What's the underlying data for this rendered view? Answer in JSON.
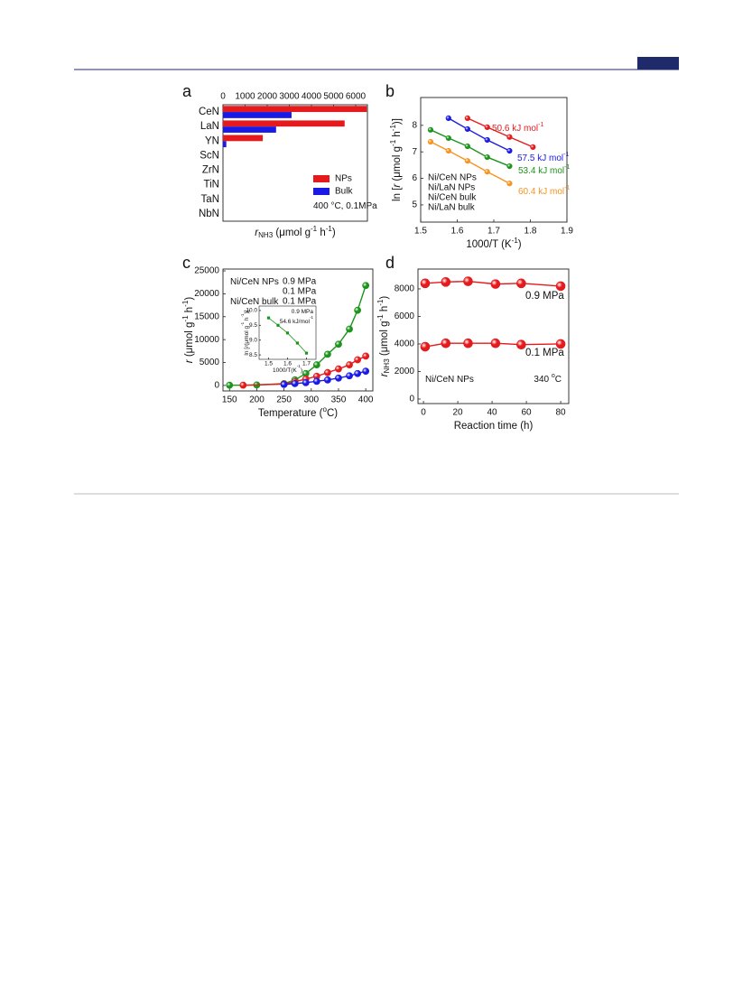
{
  "chart_data": [
    {
      "panel": "a",
      "type": "bar",
      "orientation": "horizontal",
      "xaxis": "top",
      "categories": [
        "CeN",
        "LaN",
        "YN",
        "ScN",
        "ZrN",
        "TiN",
        "TaN",
        "NbN"
      ],
      "series": [
        {
          "name": "NPs",
          "color": "#e41a1c",
          "values": [
            6500,
            5500,
            1800,
            0,
            0,
            0,
            0,
            0
          ]
        },
        {
          "name": "Bulk",
          "color": "#1a1ae6",
          "values": [
            3100,
            2400,
            150,
            0,
            0,
            0,
            0,
            0
          ]
        }
      ],
      "xlim": [
        0,
        6530
      ],
      "xticks": [
        0,
        1000,
        2000,
        3000,
        4000,
        5000,
        6000
      ],
      "xlabel": [
        {
          "text": "r",
          "style": "italic"
        },
        {
          "text": "NH3",
          "style": "sub"
        },
        {
          "text": " (μmol g"
        },
        {
          "text": "-1",
          "style": "sup"
        },
        {
          "text": " h"
        },
        {
          "text": "-1",
          "style": "sup"
        },
        {
          "text": ")"
        }
      ],
      "annotations": [
        [
          {
            "text": "400 °C, 0.1MPa"
          }
        ]
      ],
      "legend": "center-right"
    },
    {
      "panel": "b",
      "type": "line",
      "series": [
        {
          "name": "Ni/CeN NPs",
          "color": "#e41a1c",
          "x": [
            1.628,
            1.682,
            1.743,
            1.807
          ],
          "values": [
            8.27,
            7.93,
            7.56,
            7.18
          ]
        },
        {
          "name": "Ni/LaN NPs",
          "color": "#1a1ae6",
          "x": [
            1.576,
            1.628,
            1.682,
            1.743
          ],
          "values": [
            8.27,
            7.86,
            7.45,
            7.04
          ]
        },
        {
          "name": "Ni/CeN bulk",
          "color": "#1a941a",
          "x": [
            1.527,
            1.576,
            1.628,
            1.682,
            1.743
          ],
          "values": [
            7.83,
            7.52,
            7.21,
            6.8,
            6.46
          ]
        },
        {
          "name": "Ni/LaN bulk",
          "color": "#f7931e",
          "x": [
            1.527,
            1.576,
            1.628,
            1.682,
            1.743
          ],
          "values": [
            7.38,
            7.04,
            6.66,
            6.25,
            5.81
          ]
        }
      ],
      "xlim": [
        1.5,
        1.9
      ],
      "xticks": [
        1.5,
        1.6,
        1.7,
        1.8,
        1.9
      ],
      "ylim": [
        4.35,
        9.05
      ],
      "yticks": [
        5,
        6,
        7,
        8
      ],
      "xlabel": [
        {
          "text": "1000/T (K"
        },
        {
          "text": "-1",
          "style": "sup"
        },
        {
          "text": ")"
        }
      ],
      "ylabel": [
        {
          "text": "ln ["
        },
        {
          "text": "r",
          "style": "italic"
        },
        {
          "text": " (μmol g"
        },
        {
          "text": "-1",
          "style": "sup"
        },
        {
          "text": " h"
        },
        {
          "text": "-1",
          "style": "sup"
        },
        {
          "text": ")]"
        }
      ],
      "annotations": [
        [
          {
            "text": "50.6 kJ mol",
            "color": "#e41a1c"
          },
          {
            "text": "-1",
            "style": "sup",
            "color": "#e41a1c"
          }
        ],
        [
          {
            "text": "57.5 kJ mol",
            "color": "#1a1ae6"
          },
          {
            "text": "-1",
            "style": "sup",
            "color": "#1a1ae6"
          }
        ],
        [
          {
            "text": "53.4 kJ mol",
            "color": "#1a941a"
          },
          {
            "text": "-1",
            "style": "sup",
            "color": "#1a941a"
          }
        ],
        [
          {
            "text": "60.4 kJ mol",
            "color": "#f7931e"
          },
          {
            "text": "-1",
            "style": "sup",
            "color": "#f7931e"
          }
        ]
      ],
      "legend": "center-left"
    },
    {
      "panel": "c",
      "type": "line",
      "series": [
        {
          "name": "0.9 MPa",
          "color": "#1a941a",
          "x": [
            150,
            200,
            250,
            270,
            290,
            310,
            330,
            350,
            370,
            385,
            400
          ],
          "values": [
            50,
            100,
            400,
            1200,
            2600,
            4500,
            6800,
            9000,
            12300,
            16400,
            21800
          ]
        },
        {
          "name": "0.1 MPa",
          "color": "#e41a1c",
          "x": [
            175,
            250,
            270,
            290,
            310,
            330,
            350,
            370,
            385,
            400
          ],
          "values": [
            50,
            300,
            800,
            1400,
            2000,
            2800,
            3600,
            4500,
            5600,
            6400
          ]
        },
        {
          "name": "0.1 MPa",
          "color": "#1a1ae6",
          "x": [
            250,
            270,
            290,
            310,
            330,
            350,
            370,
            385,
            400
          ],
          "values": [
            200,
            400,
            600,
            900,
            1200,
            1600,
            2100,
            2600,
            3100
          ]
        }
      ],
      "xlim": [
        138,
        413
      ],
      "xticks": [
        150,
        200,
        250,
        300,
        350,
        400
      ],
      "ylim": [
        -1200,
        25400
      ],
      "yticks": [
        0,
        5000,
        10000,
        15000,
        20000,
        25000
      ],
      "xlabel": [
        {
          "text": "Temperature ("
        },
        {
          "text": "o",
          "style": "sup"
        },
        {
          "text": "C)"
        }
      ],
      "ylabel": [
        {
          "text": "r",
          "style": "italic"
        },
        {
          "text": " (μmol g"
        },
        {
          "text": "-1",
          "style": "sup"
        },
        {
          "text": " h"
        },
        {
          "text": "-1",
          "style": "sup"
        },
        {
          "text": ")"
        }
      ],
      "annotations": [
        [
          {
            "text": "Ni/CeN NPs"
          }
        ],
        [
          {
            "text": "Ni/CeN bulk"
          }
        ]
      ],
      "legend": "upper-left"
    },
    {
      "type": "line",
      "inset": true,
      "series": [
        {
          "color": "#1a941a",
          "x": [
            1.5,
            1.55,
            1.6,
            1.652,
            1.7
          ],
          "values": [
            9.75,
            9.5,
            9.24,
            8.9,
            8.56
          ]
        }
      ],
      "xlim": [
        1.45,
        1.75
      ],
      "xticks": [
        1.5,
        1.6,
        1.7
      ],
      "ylim": [
        8.35,
        10.15
      ],
      "yticks": [
        8.5,
        {
          "value": 9,
          "label": "9.0"
        },
        9.5,
        {
          "value": 10,
          "label": "10.0"
        }
      ],
      "xlabel": [
        {
          "text": "1000/T(K"
        },
        {
          "text": "-1",
          "style": "sup"
        },
        {
          "text": ")"
        }
      ],
      "ylabel": [
        {
          "text": "ln ["
        },
        {
          "text": "r",
          "style": "italic"
        },
        {
          "text": "(μmol g"
        },
        {
          "text": "-1",
          "style": "sup"
        },
        {
          "text": " h"
        },
        {
          "text": "-1",
          "style": "sup"
        },
        {
          "text": ")]"
        }
      ],
      "annotations": [
        [
          {
            "text": "0.9 MPa"
          }
        ],
        [
          {
            "text": "54.6 kJ/mol"
          },
          {
            "text": "-1",
            "style": "sup"
          }
        ]
      ]
    },
    {
      "panel": "d",
      "type": "line",
      "series": [
        {
          "name": "0.9 MPa",
          "color": "#e41a1c",
          "x": [
            1,
            13,
            26,
            42,
            57,
            80
          ],
          "values": [
            8400,
            8500,
            8550,
            8350,
            8400,
            8200
          ]
        },
        {
          "name": "0.1 MPa",
          "color": "#e41a1c",
          "x": [
            1,
            13,
            26,
            42,
            57,
            80
          ],
          "values": [
            3800,
            4050,
            4050,
            4050,
            3950,
            4000
          ]
        }
      ],
      "xlim": [
        -3.2,
        84.7
      ],
      "xticks": [
        0,
        20,
        40,
        60,
        80
      ],
      "ylim": [
        -330,
        9440
      ],
      "yticks": [
        0,
        2000,
        4000,
        6000,
        8000
      ],
      "xlabel": "Reaction time (h)",
      "ylabel": [
        {
          "text": "r",
          "style": "italic"
        },
        {
          "text": "NH3",
          "style": "sub"
        },
        {
          "text": " (μmol g"
        },
        {
          "text": "-1",
          "style": "sup"
        },
        {
          "text": " h"
        },
        {
          "text": "-1",
          "style": "sup"
        },
        {
          "text": ")"
        }
      ],
      "annotations": [
        [
          {
            "text": "Ni/CeN NPs"
          }
        ],
        [
          {
            "text": "340 "
          },
          {
            "text": "o",
            "style": "sup"
          },
          {
            "text": "C"
          }
        ]
      ]
    }
  ]
}
